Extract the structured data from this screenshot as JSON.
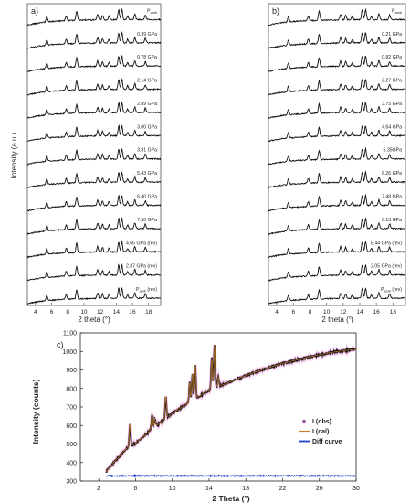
{
  "chart_data": [
    {
      "panel": "a)",
      "type": "line",
      "xlabel": "2 theta (°)",
      "ylabel": "Intensity (a.u.)",
      "xlim": [
        3,
        19.5
      ],
      "xticks": [
        4,
        6,
        8,
        10,
        12,
        14,
        16,
        18
      ],
      "peaks": [
        5.4,
        7.8,
        9.1,
        11.7,
        12.3,
        13.1,
        14.3,
        14.7,
        15.4,
        16.3,
        17.6
      ],
      "series": [
        {
          "name": "P$amb (rev)",
          "label_main": "P",
          "label_sub": "amb",
          "label_suffix": " (rev)",
          "offset": 13
        },
        {
          "name": "2.37 GPa (rev)",
          "label_main": "2.37 GPa (rev)",
          "label_sub": "",
          "label_suffix": "",
          "offset": 12
        },
        {
          "name": "4.65 GPa (rev)",
          "label_main": "4.65 GPa (rev)",
          "label_sub": "",
          "label_suffix": "",
          "offset": 11
        },
        {
          "name": "7.50 GPa",
          "label_main": "7.50 GPa",
          "label_sub": "",
          "label_suffix": "",
          "offset": 10
        },
        {
          "name": "6.40 GPa",
          "label_main": "6.40 GPa",
          "label_sub": "",
          "label_suffix": "",
          "offset": 9
        },
        {
          "name": "5.43 GPa",
          "label_main": "5.43 GPa",
          "label_sub": "",
          "label_suffix": "",
          "offset": 8
        },
        {
          "name": "3.81 GPa",
          "label_main": "3.81 GPa",
          "label_sub": "",
          "label_suffix": "",
          "offset": 7
        },
        {
          "name": "3.00 GPa",
          "label_main": "3.00 GPa",
          "label_sub": "",
          "label_suffix": "",
          "offset": 6
        },
        {
          "name": "2.89 GPa",
          "label_main": "2.89 GPa",
          "label_sub": "",
          "label_suffix": "",
          "offset": 5
        },
        {
          "name": "2.14 GPa",
          "label_main": "2.14 GPa",
          "label_sub": "",
          "label_suffix": "",
          "offset": 4
        },
        {
          "name": "0.78 GPa",
          "label_main": "0.78 GPa",
          "label_sub": "",
          "label_suffix": "",
          "offset": 3
        },
        {
          "name": "0.39 GPa",
          "label_main": "0.39 GPa",
          "label_sub": "",
          "label_suffix": "",
          "offset": 2
        },
        {
          "name": "Pamb",
          "label_main": "P",
          "label_sub": "amb",
          "label_suffix": "",
          "offset": 1
        }
      ]
    },
    {
      "panel": "b)",
      "type": "line",
      "xlabel": "2 theta (°)",
      "ylabel": "",
      "xlim": [
        3,
        19.5
      ],
      "xticks": [
        4,
        6,
        8,
        10,
        12,
        14,
        16,
        18
      ],
      "peaks": [
        5.4,
        7.8,
        9.1,
        11.7,
        12.3,
        13.1,
        14.3,
        14.7,
        15.4,
        16.3,
        17.6
      ],
      "series": [
        {
          "name": "Pamb (rev)",
          "label_main": "P",
          "label_sub": "amb",
          "label_suffix": " (rev)",
          "offset": 13
        },
        {
          "name": "2.05 GPa (rev)",
          "label_main": "2.05 GPa (rev)",
          "label_sub": "",
          "label_suffix": "",
          "offset": 12
        },
        {
          "name": "6.44 GPa (rev)",
          "label_main": "6.44 GPa (rev)",
          "label_sub": "",
          "label_suffix": "",
          "offset": 11
        },
        {
          "name": "8.13 GPa",
          "label_main": "8.13 GPa",
          "label_sub": "",
          "label_suffix": "",
          "offset": 10
        },
        {
          "name": "7.48 GPa",
          "label_main": "7.48 GPa",
          "label_sub": "",
          "label_suffix": "",
          "offset": 9
        },
        {
          "name": "6.26 GPa",
          "label_main": "6.26 GPa",
          "label_sub": "",
          "label_suffix": "",
          "offset": 8
        },
        {
          "name": "5.35GPa",
          "label_main": "5.35GPa",
          "label_sub": "",
          "label_suffix": "",
          "offset": 7
        },
        {
          "name": "4.64 GPa",
          "label_main": "4.64 GPa",
          "label_sub": "",
          "label_suffix": "",
          "offset": 6
        },
        {
          "name": "3.75 GPa",
          "label_main": "3.75 GPa",
          "label_sub": "",
          "label_suffix": "",
          "offset": 5
        },
        {
          "name": "2.27 GPa",
          "label_main": "2.27 GPa",
          "label_sub": "",
          "label_suffix": "",
          "offset": 4
        },
        {
          "name": "0.82 GPa",
          "label_main": "0.82 GPa",
          "label_sub": "",
          "label_suffix": "",
          "offset": 3
        },
        {
          "name": "0.21 GPa",
          "label_main": "0.21 GPa",
          "label_sub": "",
          "label_suffix": "",
          "offset": 2
        },
        {
          "name": "Pamb",
          "label_main": "P",
          "label_sub": "amb",
          "label_suffix": "",
          "offset": 1
        }
      ]
    },
    {
      "panel": "c)",
      "type": "line",
      "xlabel": "2 Theta (°)",
      "ylabel": "Intensity (counts)",
      "xlim": [
        0,
        30
      ],
      "ylim": [
        300,
        1100
      ],
      "xticks": [
        2,
        6,
        10,
        14,
        18,
        22,
        26,
        30
      ],
      "yticks": [
        300,
        400,
        500,
        600,
        700,
        800,
        900,
        1000,
        1100
      ],
      "legend": "right",
      "series": [
        {
          "name": "I (obs)",
          "color": "#9c4fa3"
        },
        {
          "name": "I (cal)",
          "color": "#c9802a"
        },
        {
          "name": "Diff curve",
          "color": "#1f3fcf"
        }
      ],
      "background_points": [
        [
          2.8,
          350
        ],
        [
          4,
          420
        ],
        [
          5,
          475
        ],
        [
          6,
          505
        ],
        [
          8,
          590
        ],
        [
          10,
          665
        ],
        [
          12,
          730
        ],
        [
          14,
          790
        ],
        [
          16,
          830
        ],
        [
          18,
          870
        ],
        [
          20,
          905
        ],
        [
          22,
          935
        ],
        [
          24,
          960
        ],
        [
          26,
          982
        ],
        [
          28,
          1000
        ],
        [
          30,
          1012
        ]
      ],
      "peaks": [
        [
          5.4,
          610
        ],
        [
          7.8,
          655
        ],
        [
          8.1,
          640
        ],
        [
          9.3,
          760
        ],
        [
          11.9,
          835
        ],
        [
          12.2,
          880
        ],
        [
          12.5,
          930
        ],
        [
          14.3,
          965
        ],
        [
          14.6,
          1035
        ],
        [
          15.0,
          865
        ]
      ],
      "diff_level": 328
    }
  ]
}
